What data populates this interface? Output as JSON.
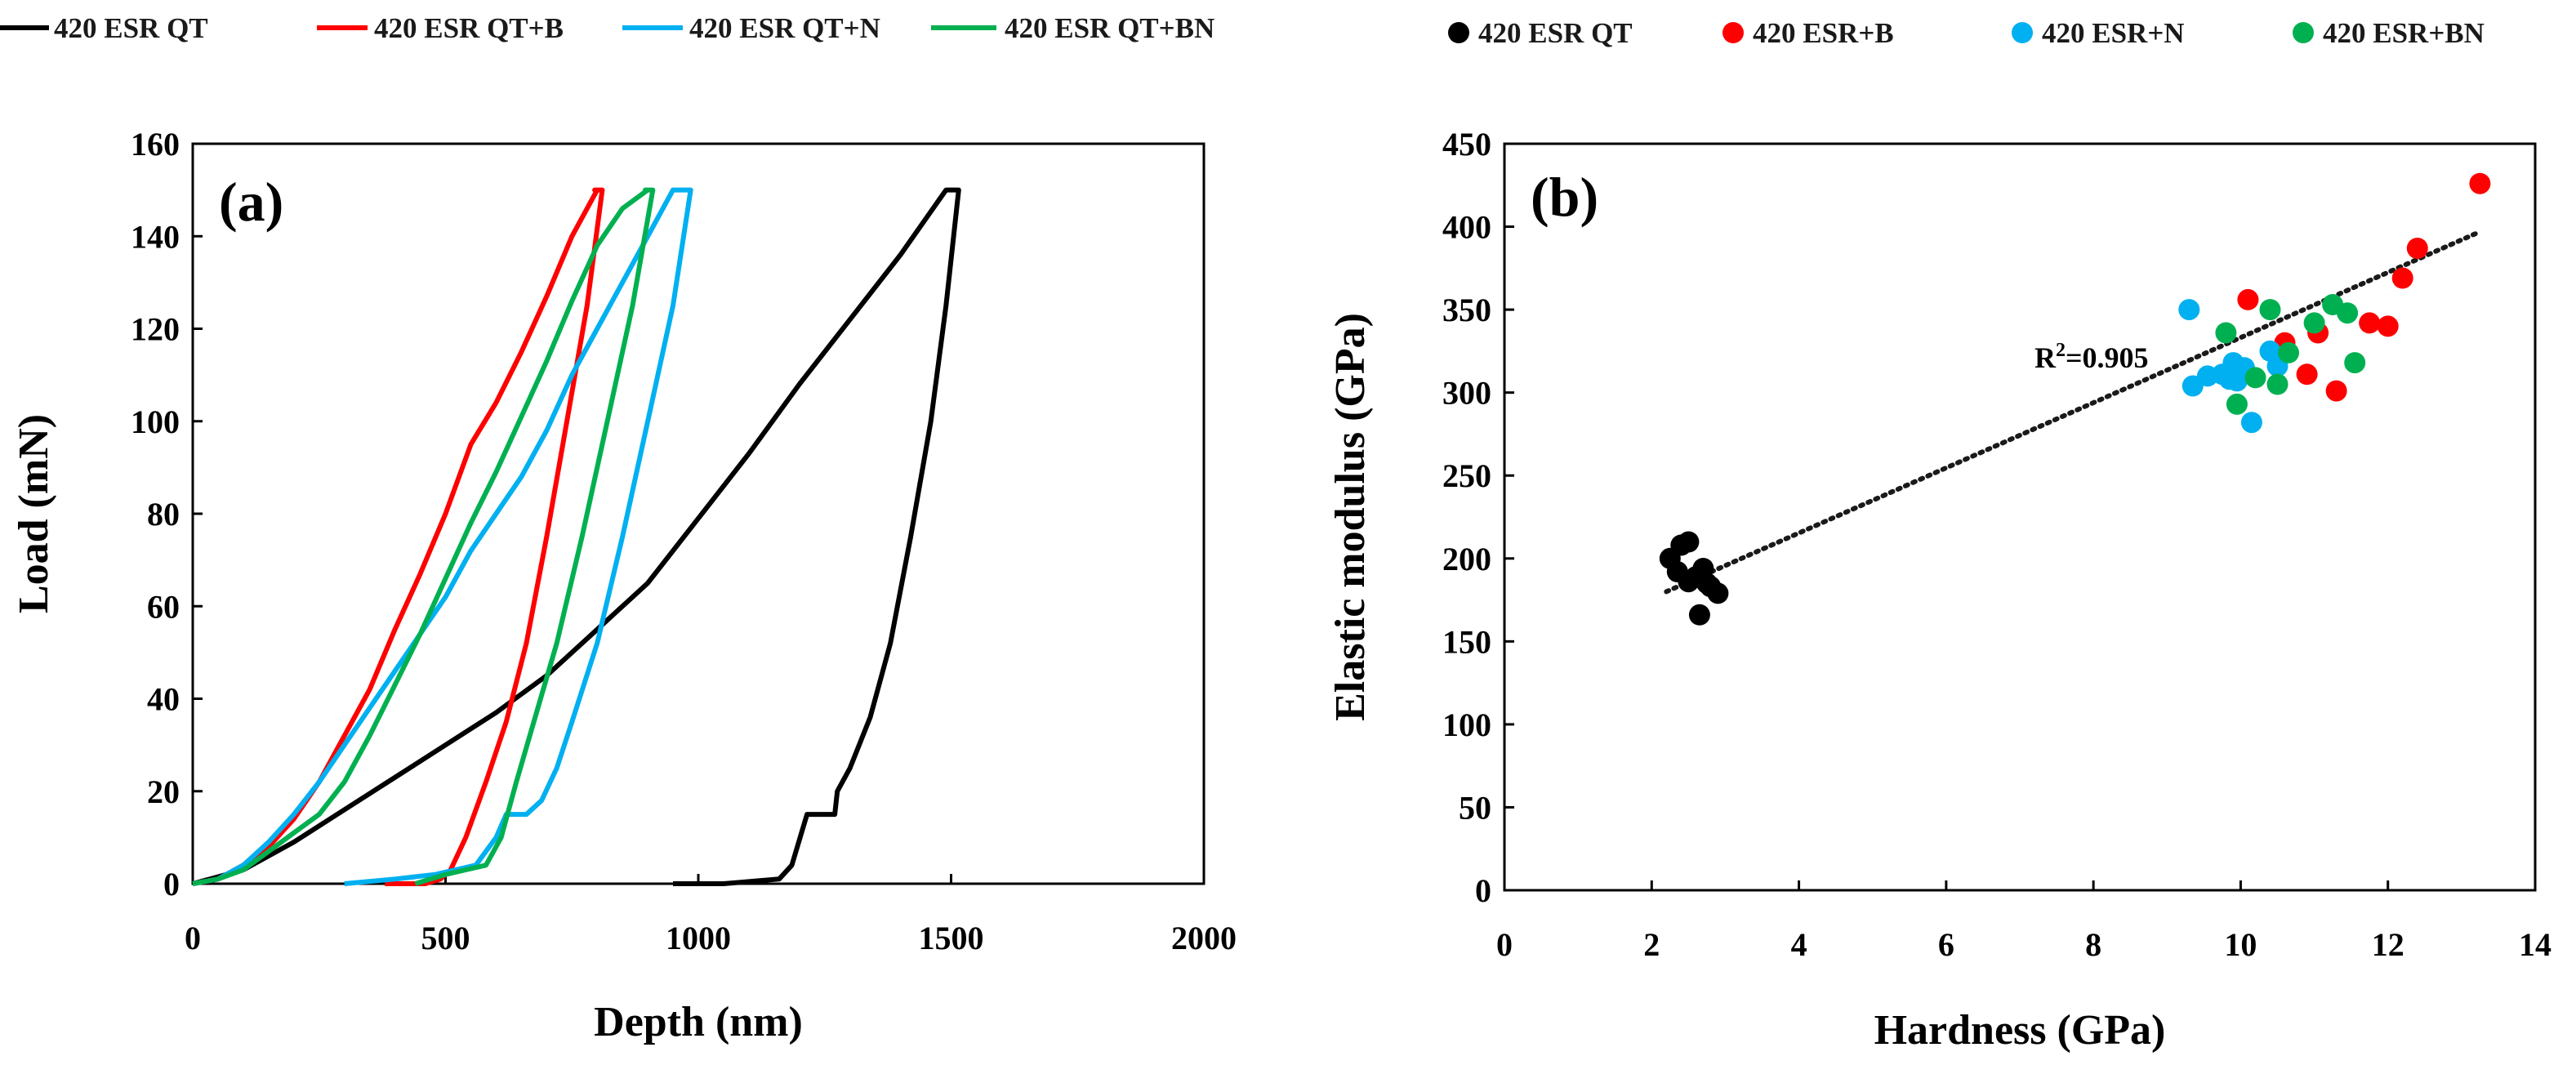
{
  "chart_data": [
    {
      "type": "line",
      "panel_label": "(a)",
      "xlabel": "Depth (nm)",
      "ylabel": "Load (mN)",
      "xlim": [
        0,
        2000
      ],
      "ylim": [
        0,
        160
      ],
      "xticks": [
        0,
        500,
        1000,
        1500,
        2000
      ],
      "yticks": [
        0,
        20,
        40,
        60,
        80,
        100,
        120,
        140,
        160
      ],
      "grid": false,
      "legend_position": "top",
      "series": [
        {
          "name": "420 ESR QT",
          "color": "#000000",
          "loading": [
            [
              0,
              0
            ],
            [
              100,
              3
            ],
            [
              200,
              9
            ],
            [
              300,
              16
            ],
            [
              400,
              23
            ],
            [
              500,
              30
            ],
            [
              600,
              37
            ],
            [
              700,
              45
            ],
            [
              800,
              55
            ],
            [
              900,
              65
            ],
            [
              1000,
              79
            ],
            [
              1100,
              93
            ],
            [
              1200,
              108
            ],
            [
              1300,
              122
            ],
            [
              1400,
              136
            ],
            [
              1490,
              150
            ]
          ],
          "hold": [
            [
              1490,
              150
            ],
            [
              1515,
              150
            ]
          ],
          "unloading": [
            [
              1515,
              150
            ],
            [
              1490,
              125
            ],
            [
              1460,
              100
            ],
            [
              1420,
              75
            ],
            [
              1380,
              52
            ],
            [
              1340,
              36
            ],
            [
              1300,
              25
            ],
            [
              1275,
              20
            ],
            [
              1270,
              15
            ],
            [
              1215,
              15
            ],
            [
              1185,
              4
            ],
            [
              1160,
              1
            ],
            [
              1050,
              0
            ],
            [
              950,
              0
            ]
          ]
        },
        {
          "name": "420 ESR QT+B",
          "color": "#ff0000",
          "loading": [
            [
              0,
              0
            ],
            [
              50,
              1
            ],
            [
              100,
              4
            ],
            [
              150,
              8
            ],
            [
              200,
              14
            ],
            [
              250,
              22
            ],
            [
              300,
              32
            ],
            [
              350,
              42
            ],
            [
              400,
              55
            ],
            [
              450,
              67
            ],
            [
              500,
              80
            ],
            [
              550,
              95
            ],
            [
              600,
              104
            ],
            [
              650,
              115
            ],
            [
              700,
              127
            ],
            [
              750,
              140
            ],
            [
              800,
              150
            ]
          ],
          "hold": [
            [
              795,
              150
            ],
            [
              810,
              150
            ]
          ],
          "unloading": [
            [
              810,
              150
            ],
            [
              780,
              125
            ],
            [
              740,
              100
            ],
            [
              700,
              75
            ],
            [
              660,
              52
            ],
            [
              620,
              35
            ],
            [
              580,
              22
            ],
            [
              540,
              10
            ],
            [
              510,
              3
            ],
            [
              490,
              1
            ],
            [
              460,
              0
            ],
            [
              380,
              0
            ]
          ]
        },
        {
          "name": "420 ESR QT+N",
          "color": "#00b0f0",
          "loading": [
            [
              0,
              0
            ],
            [
              50,
              1
            ],
            [
              100,
              4
            ],
            [
              150,
              9
            ],
            [
              200,
              15
            ],
            [
              250,
              22
            ],
            [
              300,
              30
            ],
            [
              350,
              38
            ],
            [
              400,
              46
            ],
            [
              450,
              54
            ],
            [
              500,
              62
            ],
            [
              550,
              72
            ],
            [
              600,
              80
            ],
            [
              650,
              88
            ],
            [
              700,
              98
            ],
            [
              750,
              110
            ],
            [
              800,
              120
            ],
            [
              850,
              130
            ],
            [
              900,
              140
            ],
            [
              950,
              150
            ]
          ],
          "hold": [
            [
              955,
              150
            ],
            [
              985,
              150
            ]
          ],
          "unloading": [
            [
              985,
              150
            ],
            [
              950,
              125
            ],
            [
              900,
              100
            ],
            [
              850,
              75
            ],
            [
              800,
              52
            ],
            [
              750,
              35
            ],
            [
              720,
              25
            ],
            [
              690,
              18
            ],
            [
              660,
              15
            ],
            [
              620,
              15
            ],
            [
              600,
              10
            ],
            [
              560,
              4
            ],
            [
              480,
              2
            ],
            [
              400,
              1
            ],
            [
              300,
              0
            ]
          ]
        },
        {
          "name": "420 ESR QT+BN",
          "color": "#00b050",
          "loading": [
            [
              0,
              0
            ],
            [
              50,
              1
            ],
            [
              100,
              3
            ],
            [
              150,
              7
            ],
            [
              200,
              11
            ],
            [
              250,
              15
            ],
            [
              300,
              22
            ],
            [
              350,
              32
            ],
            [
              400,
              43
            ],
            [
              450,
              54
            ],
            [
              500,
              66
            ],
            [
              550,
              78
            ],
            [
              600,
              89
            ],
            [
              650,
              101
            ],
            [
              700,
              113
            ],
            [
              750,
              126
            ],
            [
              800,
              138
            ],
            [
              850,
              146
            ],
            [
              900,
              150
            ]
          ],
          "hold": [
            [
              895,
              150
            ],
            [
              910,
              150
            ]
          ],
          "unloading": [
            [
              910,
              150
            ],
            [
              870,
              125
            ],
            [
              820,
              100
            ],
            [
              770,
              75
            ],
            [
              720,
              52
            ],
            [
              680,
              37
            ],
            [
              640,
              22
            ],
            [
              610,
              10
            ],
            [
              580,
              4
            ],
            [
              540,
              3
            ],
            [
              500,
              2
            ],
            [
              440,
              0
            ]
          ]
        }
      ]
    },
    {
      "type": "scatter",
      "panel_label": "(b)",
      "xlabel": "Hardness (GPa)",
      "ylabel": "Elastic modulus (GPa)",
      "xlim": [
        0,
        14
      ],
      "ylim": [
        0,
        450
      ],
      "xticks": [
        0,
        2,
        4,
        6,
        8,
        10,
        12,
        14
      ],
      "yticks": [
        0,
        50,
        100,
        150,
        200,
        250,
        300,
        350,
        400,
        450
      ],
      "grid": false,
      "legend_position": "top",
      "annotation": {
        "prefix": "R",
        "superscript": "2",
        "value": "=0.905",
        "x": 7.2,
        "y": 315
      },
      "trendline": {
        "x": [
          2.2,
          13.2
        ],
        "y": [
          180,
          396
        ]
      },
      "series": [
        {
          "name": "420 ESR QT",
          "color": "#000000",
          "points": [
            [
              2.25,
              200
            ],
            [
              2.4,
              208
            ],
            [
              2.5,
              210
            ],
            [
              2.35,
              192
            ],
            [
              2.5,
              186
            ],
            [
              2.6,
              189
            ],
            [
              2.7,
              194
            ],
            [
              2.75,
              185
            ],
            [
              2.8,
              183
            ],
            [
              2.9,
              179
            ],
            [
              2.65,
              166
            ]
          ]
        },
        {
          "name": "420 ESR+B",
          "color": "#ff0000",
          "points": [
            [
              10.1,
              356
            ],
            [
              10.6,
              330
            ],
            [
              10.9,
              311
            ],
            [
              11.05,
              336
            ],
            [
              11.3,
              301
            ],
            [
              11.75,
              342
            ],
            [
              12.0,
              340
            ],
            [
              12.2,
              369
            ],
            [
              12.4,
              387
            ],
            [
              13.25,
              426
            ]
          ]
        },
        {
          "name": "420 ESR+N",
          "color": "#00b0f0",
          "points": [
            [
              9.3,
              350
            ],
            [
              9.35,
              304
            ],
            [
              9.55,
              310
            ],
            [
              9.75,
              311
            ],
            [
              9.85,
              308
            ],
            [
              9.9,
              318
            ],
            [
              9.95,
              307
            ],
            [
              10.05,
              315
            ],
            [
              10.15,
              282
            ],
            [
              10.4,
              325
            ],
            [
              10.5,
              316
            ]
          ]
        },
        {
          "name": "420 ESR+BN",
          "color": "#00b050",
          "points": [
            [
              9.8,
              336
            ],
            [
              9.95,
              293
            ],
            [
              10.2,
              309
            ],
            [
              10.4,
              350
            ],
            [
              10.5,
              305
            ],
            [
              10.65,
              324
            ],
            [
              11.0,
              342
            ],
            [
              11.25,
              353
            ],
            [
              11.45,
              348
            ],
            [
              11.55,
              318
            ]
          ]
        }
      ]
    }
  ]
}
